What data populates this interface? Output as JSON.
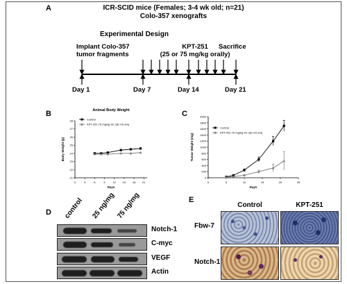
{
  "panel_a": {
    "label": "A",
    "title_line1": "ICR-SCID mice (Females; 3-4 wk old; n=21)",
    "title_line2": "Colo-357 xenografts",
    "design": "Experimental Design",
    "implant_line1": "Implant Colo-357",
    "implant_line2": "tumor fragments",
    "kpt_line1": "KPT-251",
    "kpt_line2": "(25 or 75 mg/kg orally)",
    "sacrifice": "Sacrifice",
    "days": [
      "Day 1",
      "Day 7",
      "Day 14",
      "Day 21"
    ]
  },
  "panel_b": {
    "label": "B",
    "chart_data": {
      "type": "line",
      "title": "Animal Body Weight",
      "xlabel": "Days",
      "ylabel": "Body Weight (g)",
      "xticks": [
        0,
        3,
        6,
        9,
        12,
        15,
        18,
        21
      ],
      "yticks": [
        21,
        22,
        23,
        24,
        25,
        26,
        27,
        28
      ],
      "xlim": [
        0,
        22
      ],
      "ylim": [
        21,
        28
      ],
      "series": [
        {
          "name": "Control",
          "marker": "square",
          "x": [
            6,
            8,
            10,
            14,
            17,
            20
          ],
          "y": [
            24.0,
            24.0,
            24.1,
            24.4,
            24.5,
            24.6
          ]
        },
        {
          "name": "KPT-251 75 mg/kg SC QD X5 only",
          "marker": "triangle",
          "x": [
            6,
            8,
            10,
            14,
            17,
            20
          ],
          "y": [
            23.9,
            23.9,
            23.9,
            24.0,
            24.0,
            24.1
          ]
        }
      ]
    }
  },
  "panel_c": {
    "label": "C",
    "chart_data": {
      "type": "line",
      "xlabel": "Days",
      "ylabel": "Tumor Weight (mg)",
      "xticks": [
        0,
        5,
        10,
        15,
        20,
        25
      ],
      "yticks": [
        0,
        200,
        400,
        600,
        800,
        1000,
        1200,
        1400,
        1600,
        1800,
        2000
      ],
      "xlim": [
        0,
        25
      ],
      "ylim": [
        0,
        2000
      ],
      "series": [
        {
          "name": "Control",
          "marker": "square",
          "x": [
            5,
            7,
            10,
            14,
            18,
            21
          ],
          "y": [
            30,
            80,
            250,
            600,
            1200,
            1700
          ],
          "err": [
            10,
            20,
            40,
            80,
            150,
            180
          ]
        },
        {
          "name": "KPT-251 75 mg/kg SC QD X5 only",
          "marker": "triangle",
          "x": [
            5,
            7,
            10,
            14,
            18,
            21
          ],
          "y": [
            20,
            40,
            80,
            200,
            320,
            550
          ],
          "err": [
            5,
            10,
            20,
            50,
            120,
            300
          ]
        }
      ]
    }
  },
  "panel_d": {
    "label": "D",
    "lanes": [
      "control",
      "25 ng/mg",
      "75 ng/mg"
    ],
    "blots": [
      "Notch-1",
      "C-myc",
      "VEGF",
      "Actin"
    ]
  },
  "panel_e": {
    "label": "E",
    "columns": [
      "Control",
      "KPT-251"
    ],
    "rows": [
      "Fbw-7",
      "Notch-1"
    ]
  }
}
